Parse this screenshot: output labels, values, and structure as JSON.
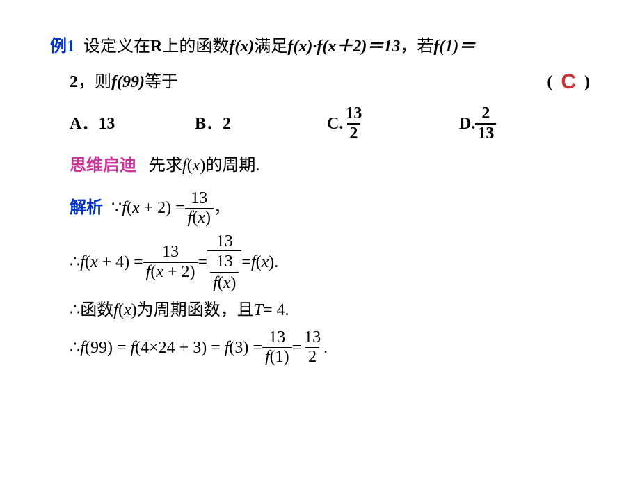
{
  "problem": {
    "label": "例1",
    "text_part1": "设定义在",
    "set": "R",
    "text_part2": "上的函数",
    "fx": "f",
    "x_var": "x",
    "text_part3": "满足",
    "eq_left": "f(x)·f(x＋2)＝13",
    "text_part4": "，若",
    "cond": "f(1)＝",
    "cond2": "2",
    "text_part5": "，则",
    "ask": "f(99)",
    "text_part6": "等于"
  },
  "answer": {
    "open": "(",
    "letter": "C",
    "close": ")"
  },
  "options": {
    "a_label": "A．",
    "a_val": "13",
    "b_label": "B．",
    "b_val": "2",
    "c_label": "C.",
    "c_num": "13",
    "c_den": "2",
    "d_label": "D.",
    "d_num": "2",
    "d_den": "13"
  },
  "thinking": {
    "label": "思维启迪",
    "text": "先求f(x)的周期."
  },
  "solution": {
    "label": "解析",
    "step1": {
      "because": "∵",
      "lhs": "f(x + 2) = ",
      "num": "13",
      "den": "f(x)",
      "tail": "，"
    },
    "step2": {
      "therefore": "∴",
      "lhs": "f(x + 4) = ",
      "frac1_num": "13",
      "frac1_den": "f(x + 2)",
      "eq": " = ",
      "frac2_num": "13",
      "frac2_inner_num": "13",
      "frac2_inner_den": "f(x)",
      "eq2": " = ",
      "rhs": "f(x).",
      "tail": ""
    },
    "step3": {
      "therefore": "∴ ",
      "text1": "函数",
      "fx": "f(x)",
      "text2": "为周期函数，且",
      "T": "T",
      "eq": " = 4."
    },
    "step4": {
      "therefore": "∴",
      "lhs": "f(99) = f(4×24 + 3) = f(3) = ",
      "frac1_num": "13",
      "frac1_den": "f(1)",
      "eq": " = ",
      "frac2_num": "13",
      "frac2_den": "2",
      "tail": "."
    }
  },
  "colors": {
    "example_label": "#0033cc",
    "thinking_label": "#cc3399",
    "solution_label": "#0033cc",
    "answer": "#cc3333",
    "text": "#000000",
    "background": "#ffffff"
  },
  "typography": {
    "base_fontsize": 24,
    "answer_fontsize": 30,
    "font_family": "SimSun, Times New Roman, serif"
  }
}
